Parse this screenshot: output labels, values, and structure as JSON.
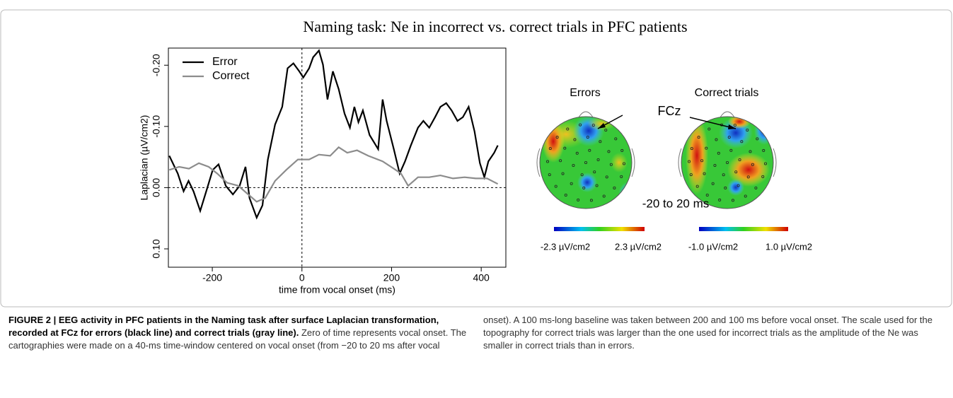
{
  "figure_title": "Naming task: Ne in incorrect vs. correct trials in PFC patients",
  "chart_data": {
    "type": "line",
    "xlabel": "time from vocal onset (ms)",
    "ylabel": "Laplacian (µV/cm2)",
    "xlim": [
      -298,
      455
    ],
    "ylim": [
      0.13,
      -0.228
    ],
    "xticks": [
      -200,
      0,
      200,
      400
    ],
    "yticks": [
      {
        "value": 0.1,
        "label": "0.10"
      },
      {
        "value": 0,
        "label": "0.00"
      },
      {
        "value": -0.1,
        "label": "-0.10"
      },
      {
        "value": -0.2,
        "label": "-0.20"
      }
    ],
    "hlines": [
      0
    ],
    "vlines": [
      0
    ],
    "legend": "top-left",
    "series": [
      {
        "name": "Error",
        "color": "#000000",
        "x": [
          -296,
          -277,
          -264,
          -253,
          -242,
          -227,
          -211,
          -199,
          -186,
          -170,
          -154,
          -139,
          -126,
          -117,
          -101,
          -88,
          -76,
          -60,
          -44,
          -32,
          -19,
          -6,
          3,
          16,
          25,
          38,
          47,
          57,
          69,
          82,
          95,
          107,
          117,
          126,
          136,
          151,
          170,
          180,
          189,
          205,
          218,
          230,
          243,
          259,
          271,
          284,
          297,
          309,
          322,
          334,
          347,
          359,
          372,
          385,
          397,
          407,
          416,
          429,
          437
        ],
        "values": [
          -0.052,
          -0.023,
          0.006,
          -0.011,
          0.006,
          0.038,
          0,
          -0.029,
          -0.038,
          -0.003,
          0.011,
          -0.003,
          -0.034,
          0.017,
          0.049,
          0.029,
          -0.046,
          -0.103,
          -0.132,
          -0.195,
          -0.203,
          -0.19,
          -0.18,
          -0.195,
          -0.213,
          -0.224,
          -0.201,
          -0.144,
          -0.19,
          -0.161,
          -0.121,
          -0.098,
          -0.132,
          -0.107,
          -0.126,
          -0.086,
          -0.063,
          -0.144,
          -0.109,
          -0.063,
          -0.023,
          -0.043,
          -0.069,
          -0.098,
          -0.109,
          -0.098,
          -0.115,
          -0.132,
          -0.138,
          -0.126,
          -0.109,
          -0.115,
          -0.132,
          -0.092,
          -0.04,
          -0.017,
          -0.043,
          -0.057,
          -0.069
        ]
      },
      {
        "name": "Correct",
        "color": "#8c8c8c",
        "x": [
          -296,
          -274,
          -252,
          -230,
          -208,
          -189,
          -167,
          -142,
          -120,
          -101,
          -82,
          -60,
          -35,
          -9,
          16,
          38,
          63,
          82,
          101,
          123,
          148,
          180,
          205,
          221,
          237,
          259,
          284,
          309,
          337,
          363,
          388,
          413,
          437
        ],
        "values": [
          -0.029,
          -0.034,
          -0.031,
          -0.04,
          -0.034,
          -0.023,
          -0.008,
          -0.003,
          0.011,
          0.023,
          0.017,
          -0.011,
          -0.029,
          -0.046,
          -0.046,
          -0.054,
          -0.052,
          -0.066,
          -0.057,
          -0.061,
          -0.052,
          -0.043,
          -0.031,
          -0.023,
          -0.003,
          -0.017,
          -0.017,
          -0.02,
          -0.015,
          -0.017,
          -0.015,
          -0.015,
          -0.006
        ]
      }
    ]
  },
  "topography": {
    "maps": [
      "Errors",
      "Correct trials"
    ],
    "electrode": "FCz",
    "window": "-20 to 20 ms",
    "scales": [
      [
        "-2.3 µV/cm2",
        "2.3 µV/cm2"
      ],
      [
        "-1.0 µV/cm2",
        "1.0 µV/cm2"
      ]
    ]
  },
  "caption": {
    "label": "FIGURE 2 | EEG activity in PFC patients in the Naming task after surface Laplacian transformation, recorded at FCz for errors (black line) and correct trials (gray line).",
    "text": "Zero of time represents vocal onset. The cartographies were made on a 40-ms time-window centered on vocal onset (from −20 to 20 ms after vocal onset). A 100 ms-long baseline was taken between 200 and 100 ms before vocal onset. The scale used for the topography for correct trials was larger than the one used for incorrect trials as the amplitude of the Ne was smaller in correct trials than in errors."
  }
}
